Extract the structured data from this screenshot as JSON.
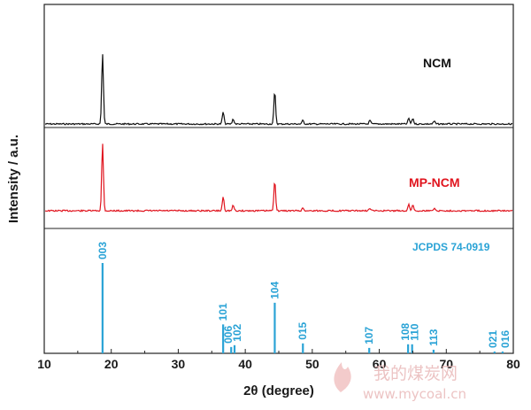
{
  "chart_data": {
    "type": "line",
    "xlabel": "2θ (degree)",
    "ylabel": "Intensity / a.u.",
    "xlim": [
      10,
      80
    ],
    "xticks": [
      "10",
      "20",
      "30",
      "40",
      "50",
      "60",
      "70",
      "80"
    ],
    "series": [
      {
        "name": "NCM",
        "color": "#111111",
        "peaks": [
          {
            "x": 18.7,
            "y": 1.0
          },
          {
            "x": 36.7,
            "y": 0.17
          },
          {
            "x": 38.2,
            "y": 0.07
          },
          {
            "x": 44.4,
            "y": 0.46
          },
          {
            "x": 48.6,
            "y": 0.05
          },
          {
            "x": 58.6,
            "y": 0.05
          },
          {
            "x": 64.4,
            "y": 0.08
          },
          {
            "x": 65.0,
            "y": 0.08
          },
          {
            "x": 68.2,
            "y": 0.04
          }
        ]
      },
      {
        "name": "MP-NCM",
        "color": "#e0141e",
        "peaks": [
          {
            "x": 18.7,
            "y": 1.0
          },
          {
            "x": 36.7,
            "y": 0.21
          },
          {
            "x": 38.2,
            "y": 0.08
          },
          {
            "x": 44.4,
            "y": 0.46
          },
          {
            "x": 48.6,
            "y": 0.04
          },
          {
            "x": 58.6,
            "y": 0.04
          },
          {
            "x": 64.4,
            "y": 0.09
          },
          {
            "x": 65.0,
            "y": 0.09
          },
          {
            "x": 68.2,
            "y": 0.04
          }
        ]
      }
    ],
    "reference": {
      "name": "JCPDS 74-0919",
      "color": "#2aa3d6",
      "lines": [
        {
          "hkl": "003",
          "x": 18.7,
          "y": 100
        },
        {
          "hkl": "101",
          "x": 36.7,
          "y": 32
        },
        {
          "hkl": "006",
          "x": 37.9,
          "y": 7
        },
        {
          "hkl": "102",
          "x": 38.4,
          "y": 9
        },
        {
          "hkl": "104",
          "x": 44.4,
          "y": 56
        },
        {
          "hkl": "015",
          "x": 48.6,
          "y": 11
        },
        {
          "hkl": "107",
          "x": 58.5,
          "y": 6
        },
        {
          "hkl": "108",
          "x": 64.3,
          "y": 10
        },
        {
          "hkl": "110",
          "x": 64.9,
          "y": 10
        },
        {
          "hkl": "113",
          "x": 68.1,
          "y": 4
        },
        {
          "hkl": "021",
          "x": 77.2,
          "y": 2
        },
        {
          "hkl": "016",
          "x": 78.4,
          "y": 2
        }
      ]
    }
  },
  "watermark": {
    "text": "我的煤炭网",
    "url": "www.mycoal.cn"
  }
}
